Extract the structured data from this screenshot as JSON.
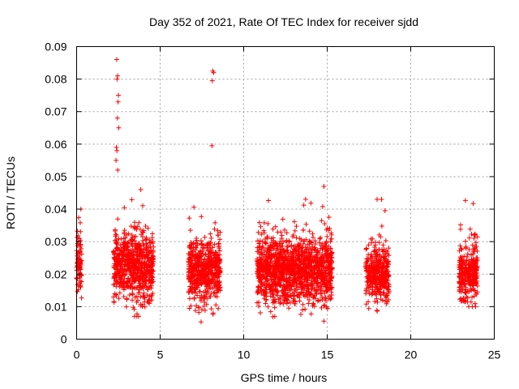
{
  "chart_data": {
    "type": "scatter",
    "title": "Day 352 of 2021, Rate Of TEC Index for receiver sjdd",
    "xlabel": "GPS time / hours",
    "ylabel": "ROTI / TECUs",
    "xlim": [
      0,
      25
    ],
    "ylim": [
      0,
      0.09
    ],
    "xticks": [
      "0",
      "5",
      "10",
      "15",
      "20",
      "25"
    ],
    "yticks": [
      "0",
      "0.01",
      "0.02",
      "0.03",
      "0.04",
      "0.05",
      "0.06",
      "0.07",
      "0.08",
      "0.09"
    ],
    "grid": true,
    "marker": "+",
    "color": "#ff0000",
    "clusters": [
      {
        "x_range": [
          0.0,
          0.3
        ],
        "y_mean": 0.024,
        "y_spread": 0.005,
        "y_min": 0.011,
        "y_max": 0.04,
        "count": 90
      },
      {
        "x_range": [
          2.2,
          4.6
        ],
        "y_mean": 0.022,
        "y_spread": 0.005,
        "y_min": 0.007,
        "y_max": 0.046,
        "count": 700
      },
      {
        "x_range": [
          6.7,
          8.6
        ],
        "y_mean": 0.021,
        "y_spread": 0.005,
        "y_min": 0.005,
        "y_max": 0.045,
        "count": 560
      },
      {
        "x_range": [
          10.8,
          15.3
        ],
        "y_mean": 0.021,
        "y_spread": 0.005,
        "y_min": 0.005,
        "y_max": 0.047,
        "count": 1400
      },
      {
        "x_range": [
          17.3,
          18.7
        ],
        "y_mean": 0.02,
        "y_spread": 0.004,
        "y_min": 0.008,
        "y_max": 0.043,
        "count": 380
      },
      {
        "x_range": [
          22.9,
          24.0
        ],
        "y_mean": 0.02,
        "y_spread": 0.004,
        "y_min": 0.01,
        "y_max": 0.043,
        "count": 330
      }
    ],
    "outliers": [
      {
        "x": 2.4,
        "y": 0.086
      },
      {
        "x": 2.45,
        "y": 0.081
      },
      {
        "x": 2.42,
        "y": 0.08
      },
      {
        "x": 2.5,
        "y": 0.075
      },
      {
        "x": 2.48,
        "y": 0.073
      },
      {
        "x": 2.44,
        "y": 0.068
      },
      {
        "x": 2.52,
        "y": 0.065
      },
      {
        "x": 2.38,
        "y": 0.059
      },
      {
        "x": 2.41,
        "y": 0.058
      },
      {
        "x": 2.36,
        "y": 0.055
      },
      {
        "x": 2.46,
        "y": 0.052
      },
      {
        "x": 8.15,
        "y": 0.0825
      },
      {
        "x": 8.2,
        "y": 0.082
      },
      {
        "x": 8.12,
        "y": 0.0795
      },
      {
        "x": 8.1,
        "y": 0.0595
      }
    ]
  }
}
